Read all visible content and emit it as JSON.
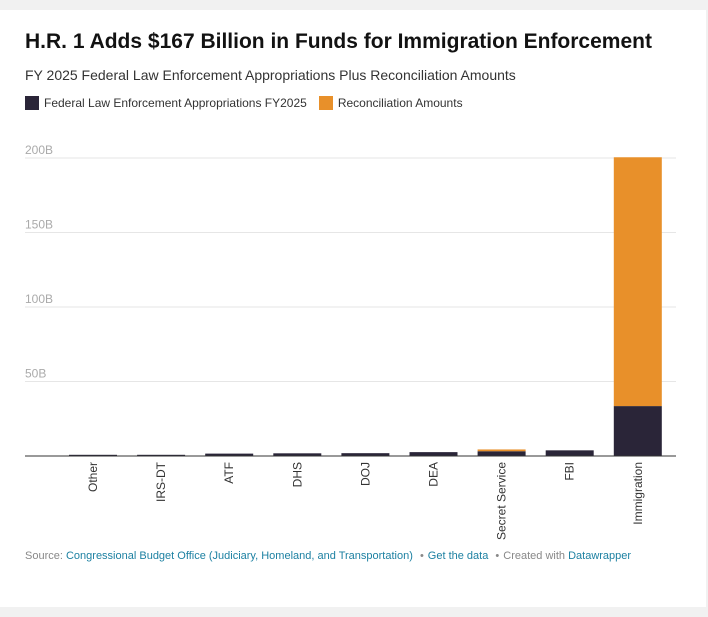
{
  "title": "H.R. 1 Adds $167 Billion in Funds for Immigration Enforcement",
  "subtitle": "FY 2025 Federal Law Enforcement Appropriations Plus Reconciliation Amounts",
  "legend": [
    {
      "label": "Federal Law Enforcement Appropriations FY2025",
      "color": "#2a2538"
    },
    {
      "label": "Reconciliation Amounts",
      "color": "#e8902a"
    }
  ],
  "chart_data": {
    "type": "bar",
    "stacked": true,
    "categories": [
      "Other",
      "IRS-DT",
      "ATF",
      "DHS",
      "DOJ",
      "DEA",
      "Secret Service",
      "FBI",
      "Immigration"
    ],
    "series": [
      {
        "name": "Federal Law Enforcement Appropriations FY2025",
        "color": "#2a2538",
        "values": [
          0.1,
          0.1,
          1.6,
          1.8,
          1.9,
          2.6,
          3.2,
          3.8,
          33.5
        ]
      },
      {
        "name": "Reconciliation Amounts",
        "color": "#e8902a",
        "values": [
          0,
          0,
          0,
          0,
          0,
          0,
          1.2,
          0,
          167
        ]
      }
    ],
    "ylim": [
      0,
      200
    ],
    "yticks": [
      {
        "value": 50,
        "label": "50B"
      },
      {
        "value": 100,
        "label": "100B"
      },
      {
        "value": 150,
        "label": "150B"
      },
      {
        "value": 200,
        "label": "200B"
      }
    ],
    "grid": true,
    "legend_position": "top-left"
  },
  "footer": {
    "source_prefix": "Source:",
    "source_link": "Congressional Budget Office (Judiciary, Homeland, and Transportation)",
    "get_data": "Get the data",
    "created_with": "Created with",
    "tool": "Datawrapper",
    "separator": "•"
  }
}
